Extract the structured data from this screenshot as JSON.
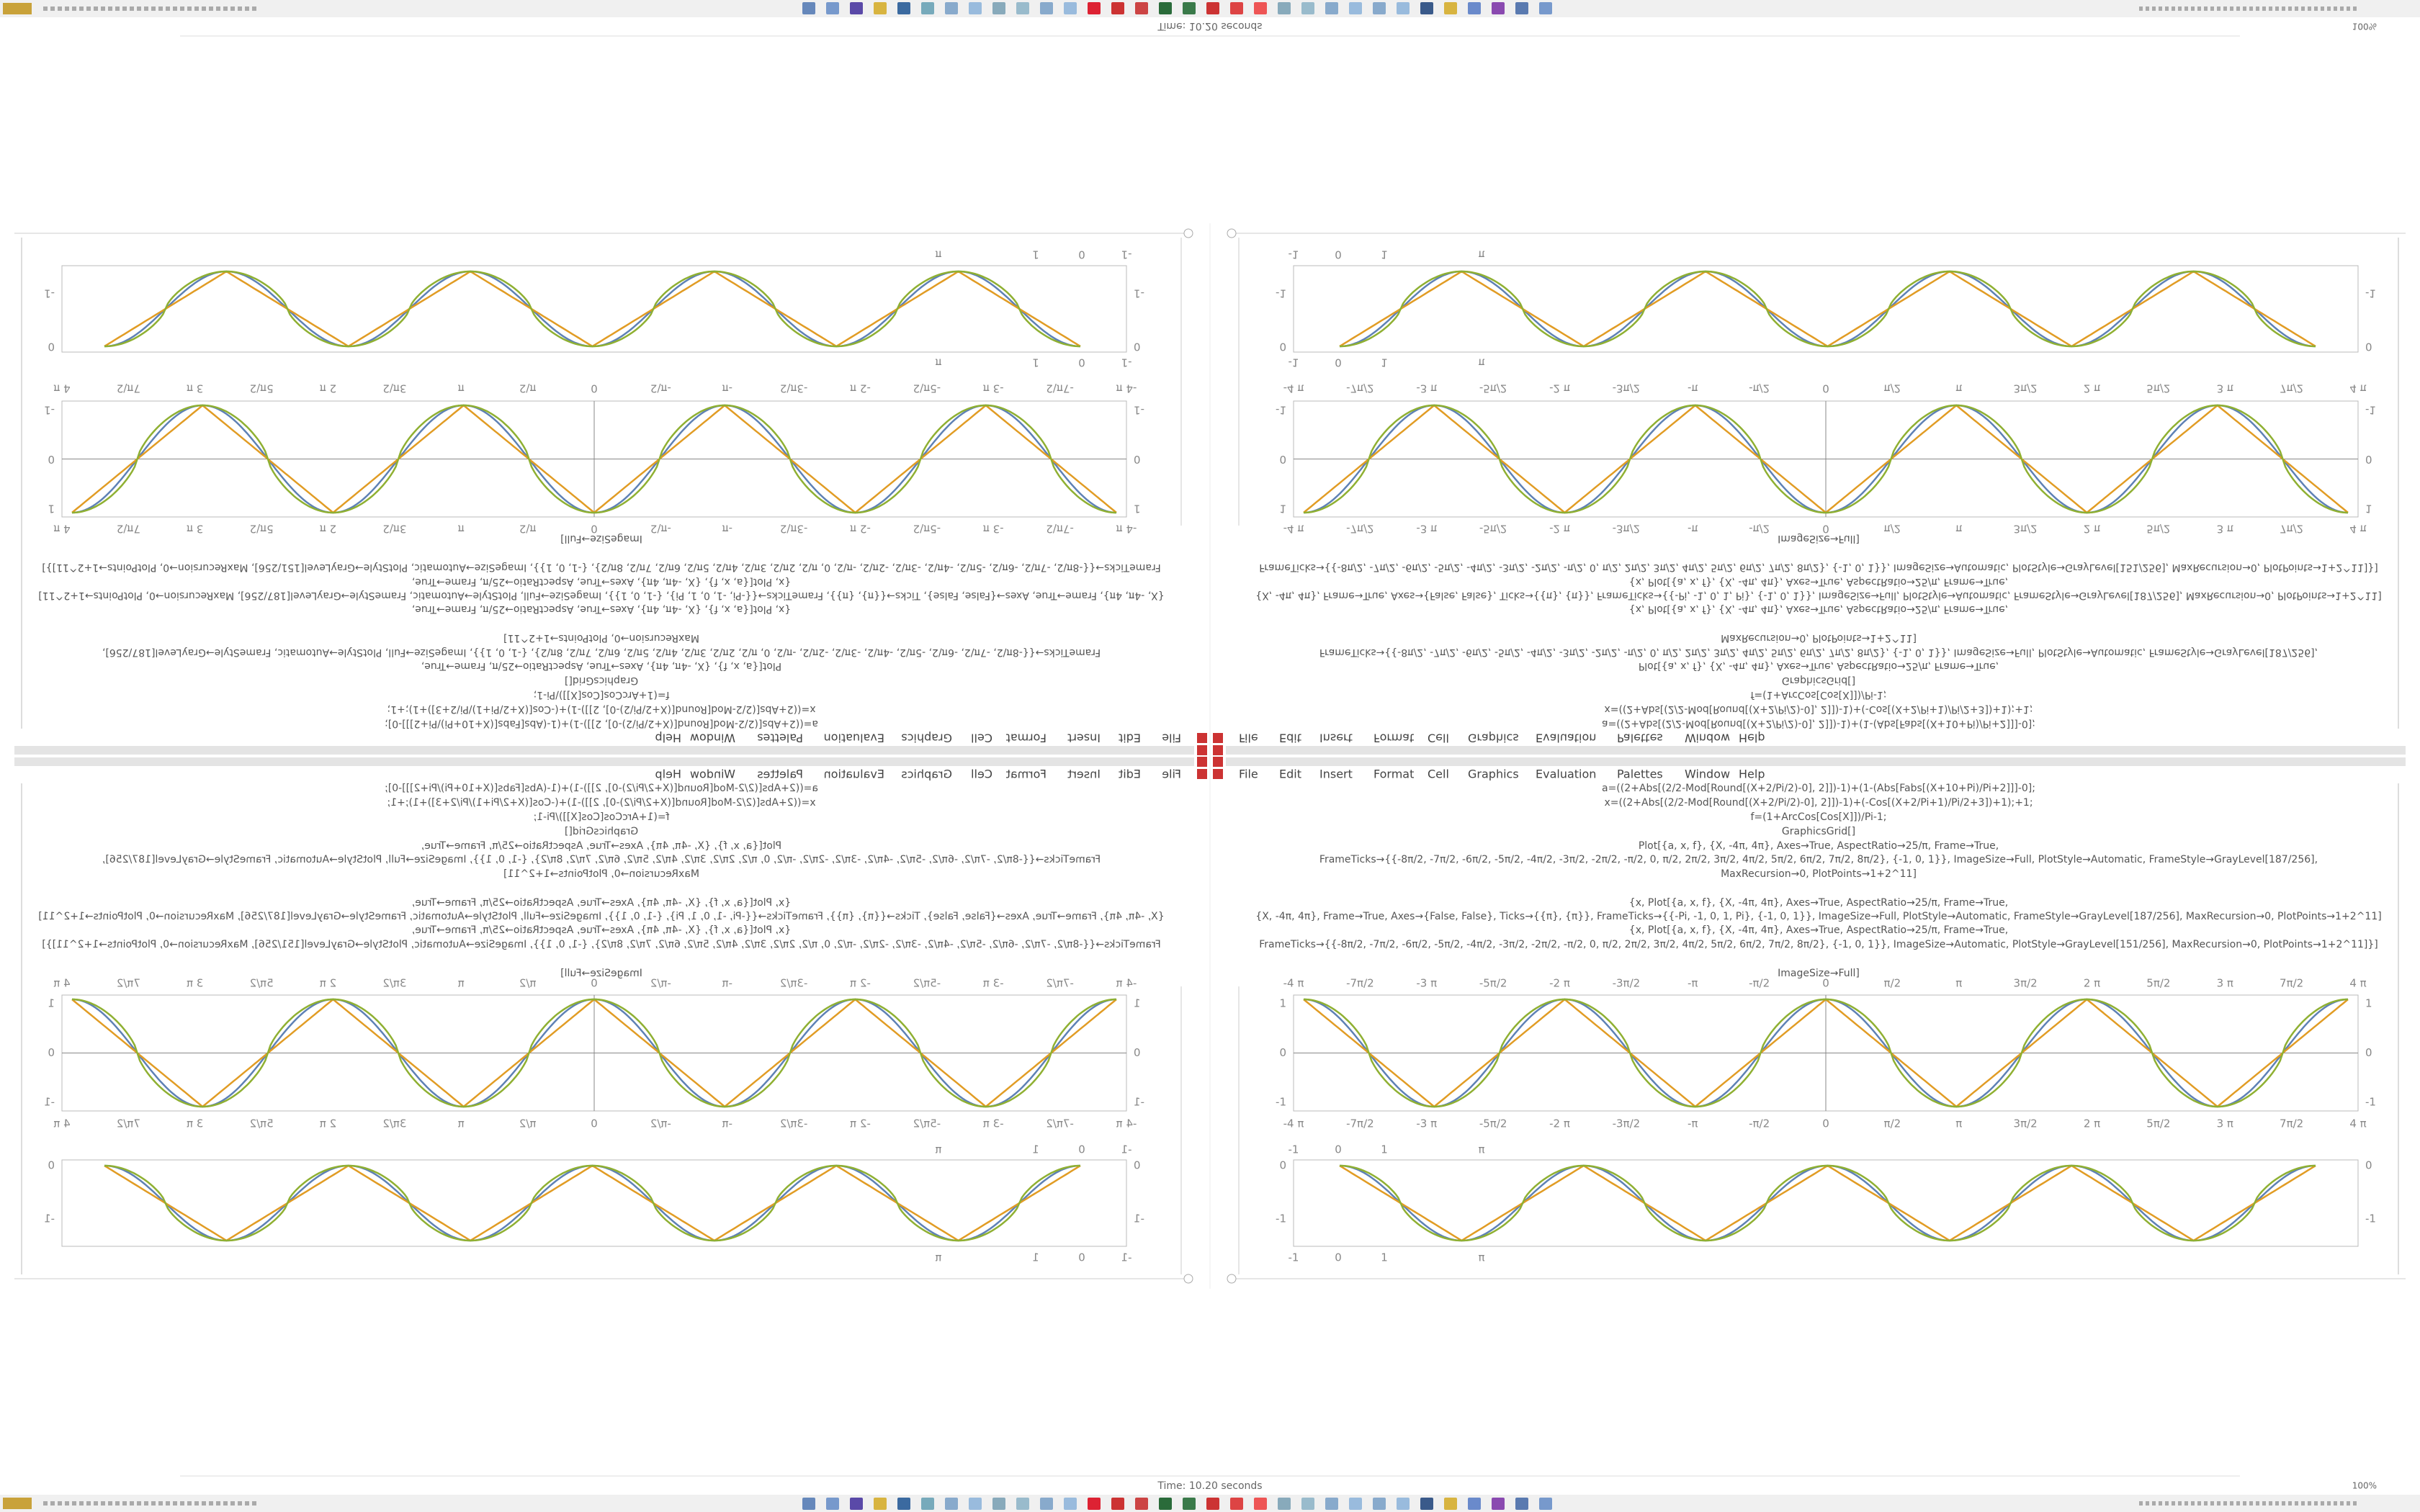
{
  "window": {
    "status": "Time: 10.20 seconds",
    "zoom": "100%"
  },
  "menu": [
    "File",
    "Edit",
    "Insert",
    "Format",
    "Cell",
    "Graphics",
    "Evaluation",
    "Palettes",
    "Window",
    "Help"
  ],
  "code": [
    "a=((2+Abs[(2/2-Mod[Round[(X+2/Pi/2)-0], 2]])-1)+(1-(Abs[Fabs[(X+10+Pi)/Pi+2]]]-0];",
    "x=((2+Abs[(2/2-Mod[Round[(X+2/Pi/2)-0], 2]])-1)+(-Cos[(X+2/Pi+1)/Pi/2+3])+1);+1;",
    "f=(1+ArcCos[Cos[X]])/Pi-1;",
    "GraphicsGrid[]",
    "Plot[{a, x, f}, {X, -4π, 4π}, Axes→True, AspectRatio→25/π, Frame→True,",
    "FrameTicks→{{-8π/2, -7π/2, -6π/2, -5π/2, -4π/2, -3π/2, -2π/2, -π/2, 0, π/2, 2π/2, 3π/2, 4π/2, 5π/2, 6π/2, 7π/2, 8π/2}, {-1, 0, 1}}, ImageSize→Full, PlotStyle→Automatic, FrameStyle→GrayLevel[187/256],",
    "MaxRecursion→0, PlotPoints→1+2^11]",
    "{x, Plot[{a, x, f}, {X, -4π, 4π}, Axes→True, AspectRatio→25/π, Frame→True,",
    "{X, -4π, 4π}, Frame→True, Axes→{False, False}, Ticks→{{π}, {π}}, FrameTicks→{{-Pi, -1, 0, 1, Pi}, {-1, 0, 1}}, ImageSize→Full, PlotStyle→Automatic, FrameStyle→GrayLevel[187/256], MaxRecursion→0, PlotPoints→1+2^11]",
    "{x, Plot[{a, x, f}, {X, -4π, 4π}, Axes→True, AspectRatio→25/π, Frame→True,",
    "FrameTicks→{{-8π/2, -7π/2, -6π/2, -5π/2, -4π/2, -3π/2, -2π/2, -π/2, 0, π/2, 2π/2, 3π/2, 4π/2, 5π/2, 6π/2, 7π/2, 8π/2}, {-1, 0, 1}}, ImageSize→Automatic, PlotStyle→GrayLevel[151/256], MaxRecursion→0, PlotPoints→1+2^11]}]",
    "ImageSize→Full]"
  ],
  "plot_top": {
    "x_ticks": [
      "-4 π",
      "-7π/2",
      "-3 π",
      "-5π/2",
      "-2 π",
      "-3π/2",
      "-π",
      "-π/2",
      "0",
      "π/2",
      "π",
      "3π/2",
      "2 π",
      "5π/2",
      "3 π",
      "7π/2",
      "4 π"
    ],
    "y_ticks": [
      "1",
      "0",
      "-1"
    ]
  },
  "plot_bottom": {
    "x_ticks": [
      "-1",
      "0",
      "1",
      "π"
    ],
    "y_ticks": [
      "0",
      "-1"
    ]
  }
}
